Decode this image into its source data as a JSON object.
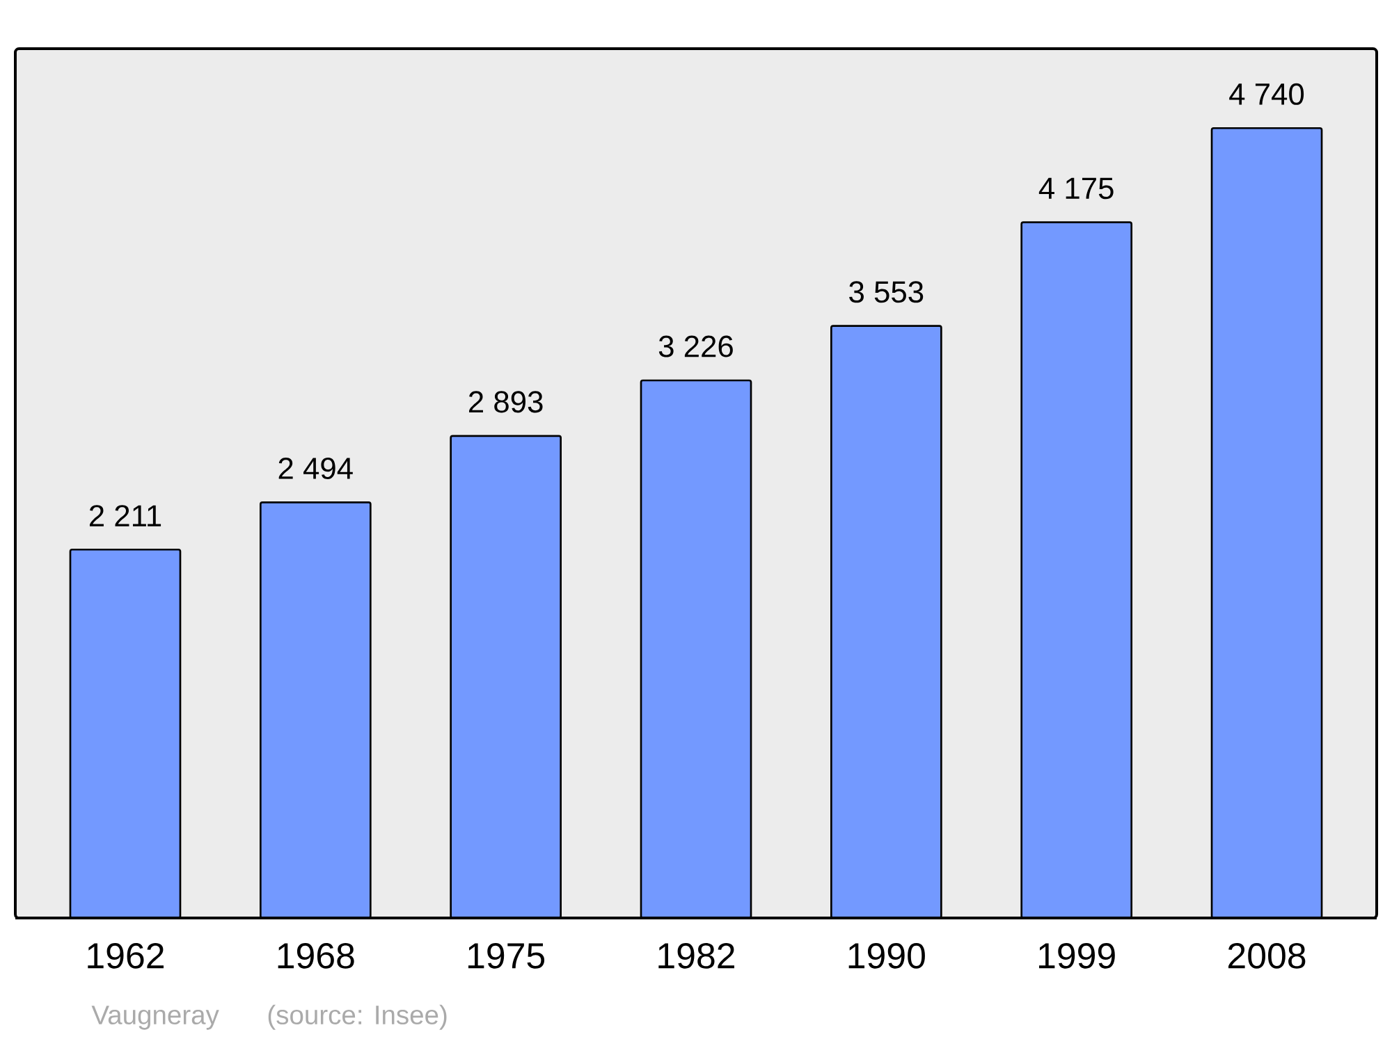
{
  "chart_data": {
    "type": "bar",
    "categories": [
      "1962",
      "1968",
      "1975",
      "1982",
      "1990",
      "1999",
      "2008"
    ],
    "values": [
      2211,
      2494,
      2893,
      3226,
      3553,
      4175,
      4740
    ],
    "value_labels": [
      "2 211",
      "2 494",
      "2 893",
      "3 226",
      "3 553",
      "4 175",
      "4 740"
    ],
    "color": "#7399ff",
    "annotations": [
      "Vaugneray",
      "(source: Insee)"
    ]
  }
}
